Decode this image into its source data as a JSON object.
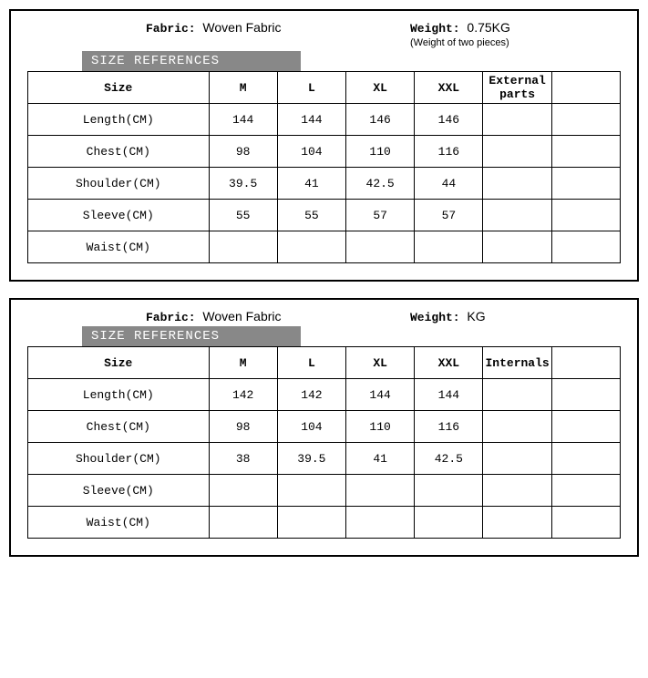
{
  "panels": [
    {
      "fabric_label": "Fabric:",
      "fabric_value": "Woven Fabric",
      "weight_label": "Weight:",
      "weight_value": "0.75KG",
      "weight_note": "(Weight of two pieces)",
      "ref_title": "SIZE REFERENCES",
      "headers": {
        "size": "Size",
        "m": "M",
        "l": "L",
        "xl": "XL",
        "xxl": "XXL",
        "extra": "External parts",
        "empty": ""
      },
      "rows": [
        {
          "label": "Length(CM)",
          "m": "144",
          "l": "144",
          "xl": "146",
          "xxl": "146",
          "extra": "",
          "empty": ""
        },
        {
          "label": "Chest(CM)",
          "m": "98",
          "l": "104",
          "xl": "110",
          "xxl": "116",
          "extra": "",
          "empty": ""
        },
        {
          "label": "Shoulder(CM)",
          "m": "39.5",
          "l": "41",
          "xl": "42.5",
          "xxl": "44",
          "extra": "",
          "empty": ""
        },
        {
          "label": "Sleeve(CM)",
          "m": "55",
          "l": "55",
          "xl": "57",
          "xxl": "57",
          "extra": "",
          "empty": ""
        },
        {
          "label": "Waist(CM)",
          "m": "",
          "l": "",
          "xl": "",
          "xxl": "",
          "extra": "",
          "empty": ""
        }
      ]
    },
    {
      "fabric_label": "Fabric:",
      "fabric_value": "Woven Fabric",
      "weight_label": "Weight:",
      "weight_value": "KG",
      "weight_note": "",
      "ref_title": "SIZE REFERENCES",
      "headers": {
        "size": "Size",
        "m": "M",
        "l": "L",
        "xl": "XL",
        "xxl": "XXL",
        "extra": "Internals",
        "empty": ""
      },
      "rows": [
        {
          "label": "Length(CM)",
          "m": "142",
          "l": "142",
          "xl": "144",
          "xxl": "144",
          "extra": "",
          "empty": ""
        },
        {
          "label": "Chest(CM)",
          "m": "98",
          "l": "104",
          "xl": "110",
          "xxl": "116",
          "extra": "",
          "empty": ""
        },
        {
          "label": "Shoulder(CM)",
          "m": "38",
          "l": "39.5",
          "xl": "41",
          "xxl": "42.5",
          "extra": "",
          "empty": ""
        },
        {
          "label": "Sleeve(CM)",
          "m": "",
          "l": "",
          "xl": "",
          "xxl": "",
          "extra": "",
          "empty": ""
        },
        {
          "label": "Waist(CM)",
          "m": "",
          "l": "",
          "xl": "",
          "xxl": "",
          "extra": "",
          "empty": ""
        }
      ]
    }
  ],
  "colors": {
    "border": "#000000",
    "ref_bg": "#888888",
    "ref_fg": "#ffffff",
    "bg": "#ffffff",
    "text": "#000000"
  }
}
